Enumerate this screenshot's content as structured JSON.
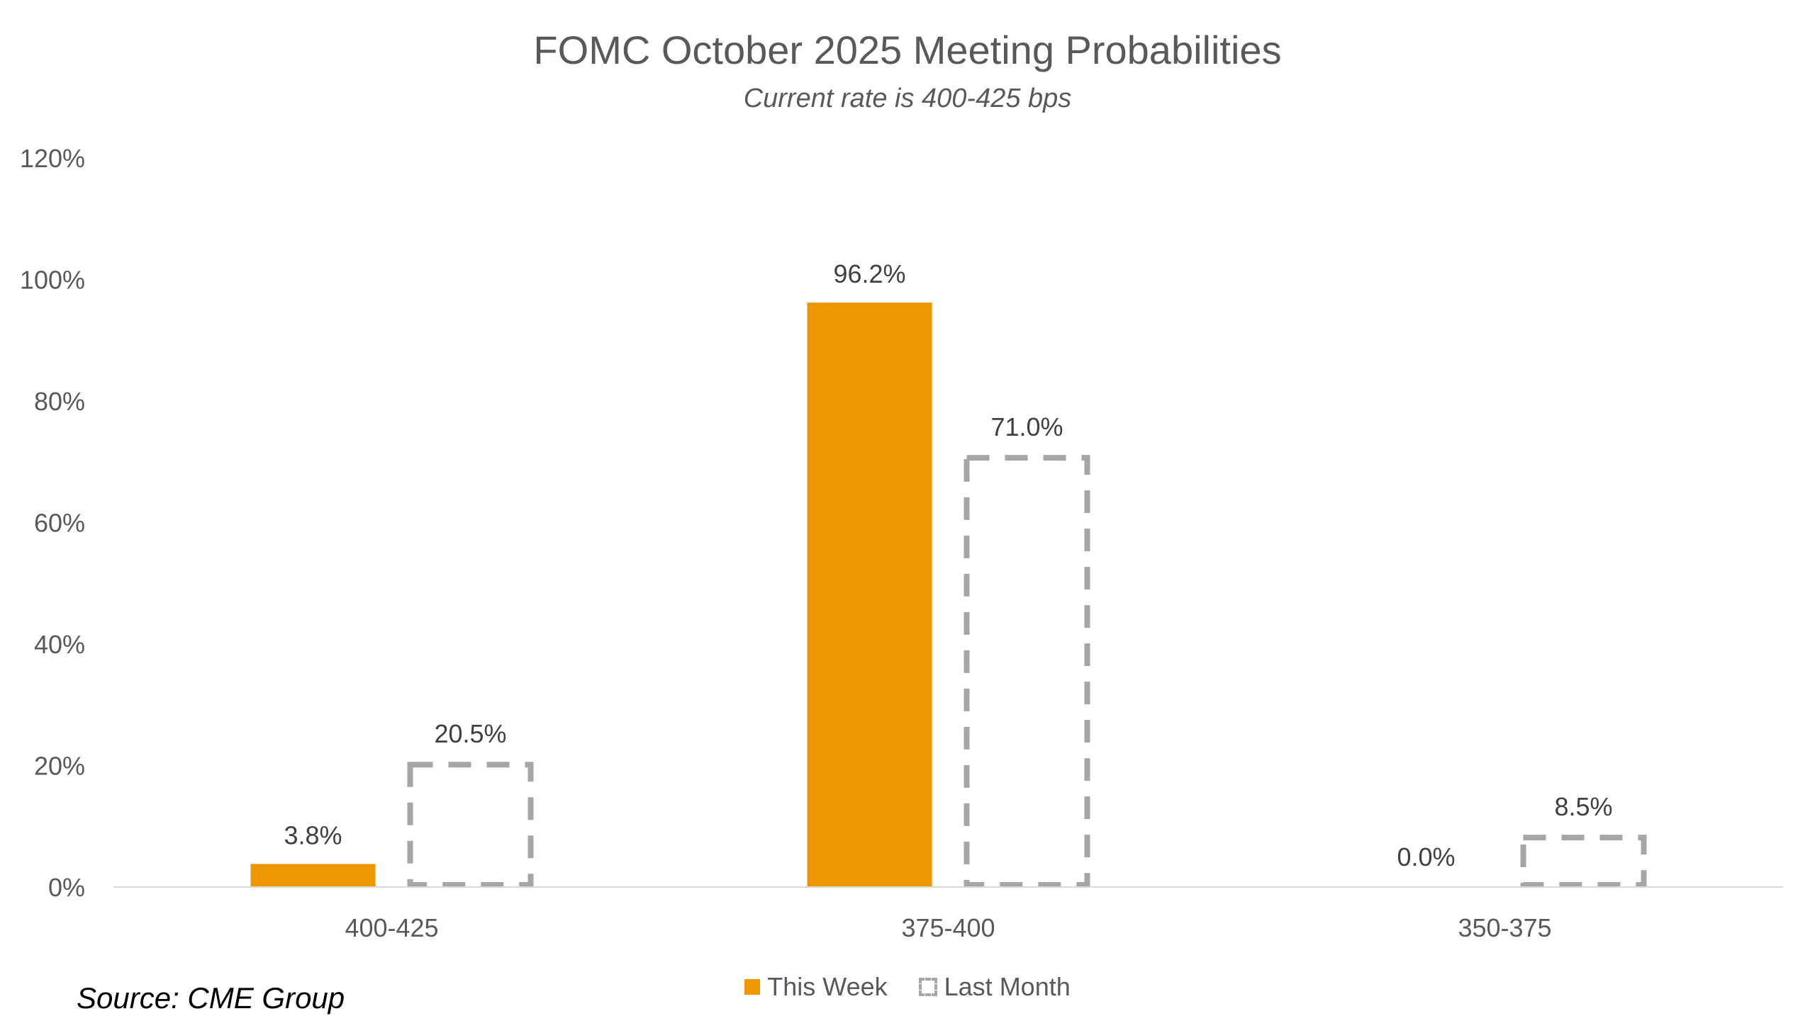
{
  "chart_data": {
    "type": "bar",
    "title": "FOMC October 2025 Meeting Probabilities",
    "subtitle": "Current rate is 400-425 bps",
    "categories": [
      "400-425",
      "375-400",
      "350-375"
    ],
    "series": [
      {
        "name": "This Week",
        "values": [
          3.8,
          96.2,
          0.0
        ],
        "labels": [
          "3.8%",
          "96.2%",
          "0.0%"
        ],
        "color": "#EE9600",
        "style": "solid"
      },
      {
        "name": "Last Month",
        "values": [
          20.5,
          71.0,
          8.5
        ],
        "labels": [
          "20.5%",
          "71.0%",
          "8.5%"
        ],
        "color": "#A6A6A6",
        "style": "dashed-outline"
      }
    ],
    "yticks": [
      "0%",
      "20%",
      "40%",
      "60%",
      "80%",
      "100%",
      "120%"
    ],
    "ytick_values": [
      0,
      20,
      40,
      60,
      80,
      100,
      120
    ],
    "ylim": [
      0,
      120
    ],
    "grid": false,
    "legend_position": "bottom",
    "source": "Source: CME Group"
  }
}
